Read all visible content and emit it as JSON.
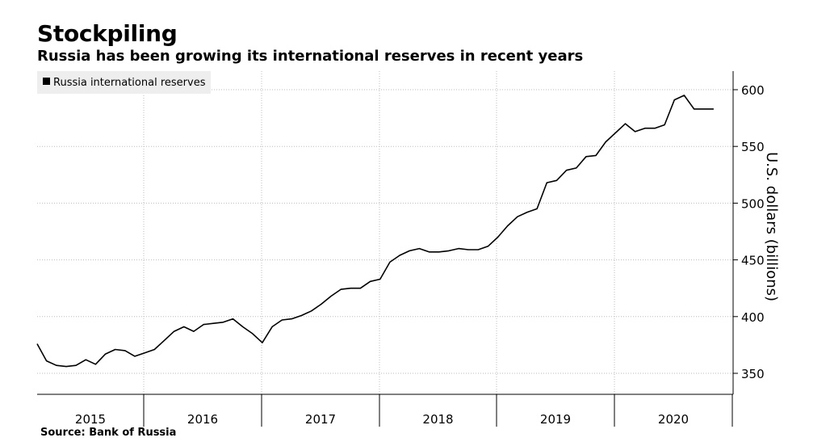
{
  "header": {
    "title": "Stockpiling",
    "subtitle": "Russia has been growing its international reserves in recent years"
  },
  "footer": {
    "source": "Source:  Bank of Russia"
  },
  "chart_data": {
    "type": "line",
    "title": "Stockpiling",
    "subtitle": "Russia has been growing its international reserves in recent years",
    "ylabel": "U.S. dollars (billions)",
    "xlabel": "",
    "ylim": [
      330,
      620
    ],
    "yticks": [
      350,
      400,
      450,
      500,
      550,
      600
    ],
    "y_axis_side": "right",
    "grid": true,
    "legend": {
      "placement": "top-left",
      "entries": [
        "Russia international reserves"
      ]
    },
    "x_tick_labels": [
      "2015",
      "2016",
      "2017",
      "2018",
      "2019",
      "2020"
    ],
    "x_range": [
      "2014-12",
      "2020-11"
    ],
    "series": [
      {
        "name": "Russia international reserves",
        "color": "#000000",
        "x": [
          "2014-12",
          "2015-01",
          "2015-02",
          "2015-03",
          "2015-04",
          "2015-05",
          "2015-06",
          "2015-07",
          "2015-08",
          "2015-09",
          "2015-10",
          "2015-11",
          "2015-12",
          "2016-01",
          "2016-02",
          "2016-03",
          "2016-04",
          "2016-05",
          "2016-06",
          "2016-07",
          "2016-08",
          "2016-09",
          "2016-10",
          "2016-11",
          "2016-12",
          "2017-01",
          "2017-02",
          "2017-03",
          "2017-04",
          "2017-05",
          "2017-06",
          "2017-07",
          "2017-08",
          "2017-09",
          "2017-10",
          "2017-11",
          "2017-12",
          "2018-01",
          "2018-02",
          "2018-03",
          "2018-04",
          "2018-05",
          "2018-06",
          "2018-07",
          "2018-08",
          "2018-09",
          "2018-10",
          "2018-11",
          "2018-12",
          "2019-01",
          "2019-02",
          "2019-03",
          "2019-04",
          "2019-05",
          "2019-06",
          "2019-07",
          "2019-08",
          "2019-09",
          "2019-10",
          "2019-11",
          "2019-12",
          "2020-01",
          "2020-02",
          "2020-03",
          "2020-04",
          "2020-05",
          "2020-06",
          "2020-07",
          "2020-08",
          "2020-09"
        ],
        "values": [
          376,
          361,
          357,
          356,
          357,
          362,
          358,
          367,
          371,
          370,
          365,
          368,
          371,
          379,
          387,
          391,
          387,
          393,
          394,
          395,
          398,
          391,
          385,
          377,
          391,
          397,
          398,
          401,
          405,
          411,
          418,
          424,
          425,
          425,
          431,
          433,
          448,
          454,
          458,
          460,
          457,
          457,
          458,
          460,
          459,
          459,
          462,
          470,
          480,
          488,
          492,
          495,
          518,
          520,
          529,
          531,
          541,
          542,
          554,
          562,
          570,
          563,
          566,
          566,
          569,
          591,
          595,
          583,
          583,
          583
        ]
      }
    ]
  }
}
